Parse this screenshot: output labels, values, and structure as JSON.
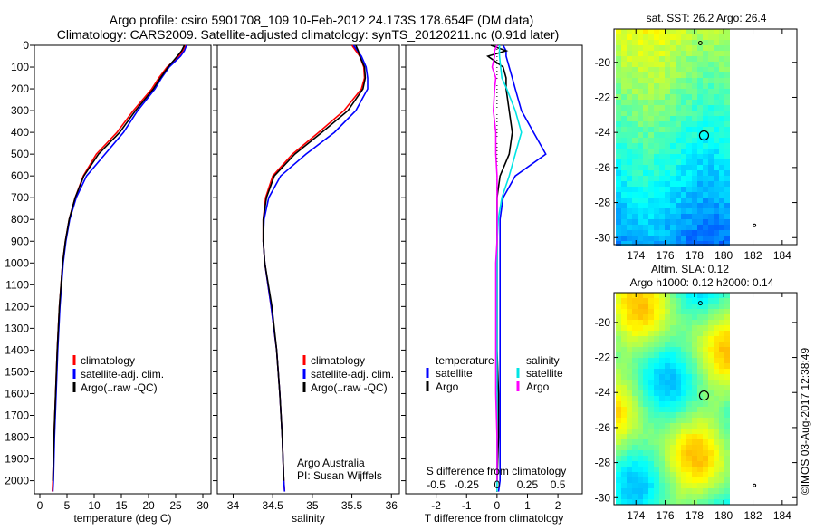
{
  "title_line1": "Argo profile: csiro 5901708_109 10-Feb-2012 24.173S 178.654E (DM data)",
  "title_line2": "Climatology: CARS2009. Satellite-adjusted climatology: synTS_20120211.nc (0.91d later)",
  "watermark": "©IMOS 03-Aug-2017 12:38:49",
  "colors": {
    "climatology": "#ff0000",
    "satellite": "#0000ff",
    "argo": "#000000",
    "sal_satellite": "#00e5e5",
    "sal_argo": "#ff00ff"
  },
  "chart_data": [
    {
      "type": "line",
      "name": "temperature-profile",
      "xlabel": "temperature (deg C)",
      "ylabel": "",
      "xlim": [
        -1,
        31.5
      ],
      "ylim": [
        2060,
        0
      ],
      "xticks": [
        0,
        5,
        10,
        15,
        20,
        25,
        30
      ],
      "yticks": [
        0,
        100,
        200,
        300,
        400,
        500,
        600,
        700,
        800,
        900,
        1000,
        1100,
        1200,
        1300,
        1400,
        1500,
        1600,
        1700,
        1800,
        1900,
        2000
      ],
      "legend": [
        "climatology",
        "satellite-adj. clim.",
        "Argo(..raw -QC)"
      ],
      "legend_placement": "lower-left",
      "depth": [
        0,
        25,
        50,
        100,
        150,
        200,
        300,
        400,
        500,
        600,
        700,
        800,
        900,
        1000,
        1200,
        1400,
        1600,
        1800,
        2000,
        2050
      ],
      "series": [
        {
          "name": "climatology",
          "values": [
            26.8,
            26.3,
            25.6,
            23.4,
            21.9,
            20.6,
            17.2,
            14.2,
            10.4,
            8.0,
            6.5,
            5.4,
            4.7,
            4.2,
            3.6,
            3.2,
            2.9,
            2.6,
            2.4,
            2.3
          ]
        },
        {
          "name": "satellite-adj. clim.",
          "values": [
            27.0,
            26.6,
            25.9,
            23.8,
            22.4,
            21.2,
            18.0,
            15.4,
            12.0,
            8.6,
            6.7,
            5.5,
            4.8,
            4.3,
            3.7,
            3.3,
            3.0,
            2.7,
            2.5,
            2.4
          ]
        },
        {
          "name": "Argo(..raw -QC)",
          "values": [
            26.6,
            26.1,
            25.3,
            23.6,
            22.2,
            20.9,
            17.6,
            14.7,
            10.8,
            8.1,
            6.5,
            5.4,
            4.7,
            4.2,
            3.6,
            3.2,
            2.9,
            2.6,
            2.4
          ]
        }
      ]
    },
    {
      "type": "line",
      "name": "salinity-profile",
      "xlabel": "salinity",
      "xlim": [
        33.8,
        36.1
      ],
      "ylim": [
        2060,
        0
      ],
      "xticks": [
        34,
        34.5,
        35,
        35.5,
        36
      ],
      "legend": [
        "climatology",
        "satellite-adj. clim.",
        "Argo(..raw -QC)"
      ],
      "legend_placement": "lower-right",
      "annotation": [
        "Argo Australia",
        "PI: Susan Wijffels"
      ],
      "depth": [
        0,
        25,
        50,
        100,
        150,
        200,
        300,
        400,
        500,
        600,
        700,
        800,
        900,
        1000,
        1200,
        1400,
        1600,
        1800,
        2000,
        2050
      ],
      "series": [
        {
          "name": "climatology",
          "values": [
            35.5,
            35.55,
            35.6,
            35.65,
            35.66,
            35.62,
            35.4,
            35.08,
            34.75,
            34.5,
            34.41,
            34.38,
            34.38,
            34.4,
            34.48,
            34.55,
            34.59,
            34.62,
            34.64,
            34.65
          ]
        },
        {
          "name": "satellite-adj. clim.",
          "values": [
            35.52,
            35.57,
            35.62,
            35.68,
            35.7,
            35.7,
            35.55,
            35.28,
            34.92,
            34.6,
            34.45,
            34.39,
            34.38,
            34.4,
            34.48,
            34.55,
            34.59,
            34.62,
            34.64,
            34.65
          ]
        },
        {
          "name": "Argo(..raw -QC)",
          "values": [
            35.55,
            35.58,
            35.6,
            35.66,
            35.67,
            35.64,
            35.45,
            35.12,
            34.78,
            34.52,
            34.42,
            34.38,
            34.38,
            34.4,
            34.49,
            34.55,
            34.59,
            34.62,
            34.64
          ]
        }
      ]
    },
    {
      "type": "line",
      "name": "difference-profile",
      "xlabel": "T difference from climatology",
      "x2label": "S difference from climatology",
      "xlim": [
        -3,
        2.8
      ],
      "ylim": [
        2060,
        0
      ],
      "xticks": [
        -2,
        -1,
        0,
        1,
        2
      ],
      "x2ticks": [
        {
          "v": -0.5,
          "label": "-0.5"
        },
        {
          "v": -0.25,
          "label": "-0.25"
        },
        {
          "v": 0,
          "label": "0"
        },
        {
          "v": 0.25,
          "label": "0.25"
        },
        {
          "v": 0.5,
          "label": "0.5"
        }
      ],
      "x2scale": 4,
      "legend_headers": [
        "temperature",
        "salinity"
      ],
      "legend": [
        [
          "satellite",
          "Argo"
        ],
        [
          "satellite",
          "Argo"
        ]
      ],
      "depth": [
        0,
        25,
        50,
        100,
        150,
        200,
        300,
        400,
        500,
        600,
        700,
        800,
        900,
        1000,
        1200,
        1400,
        1600,
        1800,
        2000,
        2050
      ],
      "series": [
        {
          "name": "temperature satellite",
          "values": [
            0.2,
            0.3,
            0.3,
            0.4,
            0.5,
            0.6,
            0.8,
            1.2,
            1.6,
            0.6,
            0.2,
            0.1,
            0.1,
            0.1,
            0.1,
            0.1,
            0.1,
            0.1,
            0.1,
            0.05
          ]
        },
        {
          "name": "temperature Argo",
          "values": [
            -0.2,
            0.3,
            -0.3,
            0.2,
            0.3,
            0.3,
            0.4,
            0.5,
            0.4,
            0.1,
            0.0,
            0.0,
            0.0,
            0.0,
            0.0,
            0.0,
            0.05,
            0.05,
            0.0
          ]
        },
        {
          "name": "salinity satellite",
          "values": [
            0.02,
            0.02,
            0.02,
            0.03,
            0.04,
            0.08,
            0.15,
            0.2,
            0.15,
            0.1,
            0.04,
            0.01,
            0.0,
            0.0,
            0.0,
            0.0,
            0.0,
            0.0,
            0.0,
            0.0
          ]
        },
        {
          "name": "salinity Argo",
          "values": [
            0.0,
            -0.02,
            -0.02,
            -0.04,
            -0.01,
            -0.02,
            -0.03,
            -0.01,
            -0.01,
            0.0,
            0.0,
            0.0,
            0.0,
            -0.01,
            -0.01,
            -0.01,
            -0.01,
            0.0,
            0.0
          ]
        }
      ]
    },
    {
      "type": "heatmap",
      "name": "sst-map",
      "title": "sat. SST: 26.2  Argo: 26.4",
      "xlim": [
        172.5,
        185
      ],
      "ylim": [
        -30.4,
        -18.1
      ],
      "xticks": [
        174,
        176,
        178,
        180,
        182,
        184
      ],
      "yticks": [
        -20,
        -22,
        -24,
        -26,
        -28,
        -30
      ],
      "data_lon_max": 180.4,
      "float_position": {
        "lon": 178.654,
        "lat": -24.173
      }
    },
    {
      "type": "heatmap",
      "name": "sla-map",
      "title_line1": "Altim. SLA: 0.12",
      "title_line2": "Argo h1000: 0.12 h2000: 0.14",
      "xlim": [
        172.5,
        185
      ],
      "ylim": [
        -30.4,
        -18.3
      ],
      "xticks": [
        174,
        176,
        178,
        180,
        182,
        184
      ],
      "yticks": [
        -20,
        -22,
        -24,
        -26,
        -28,
        -30
      ],
      "data_lon_max": 180.4,
      "float_position": {
        "lon": 178.654,
        "lat": -24.173
      }
    }
  ]
}
